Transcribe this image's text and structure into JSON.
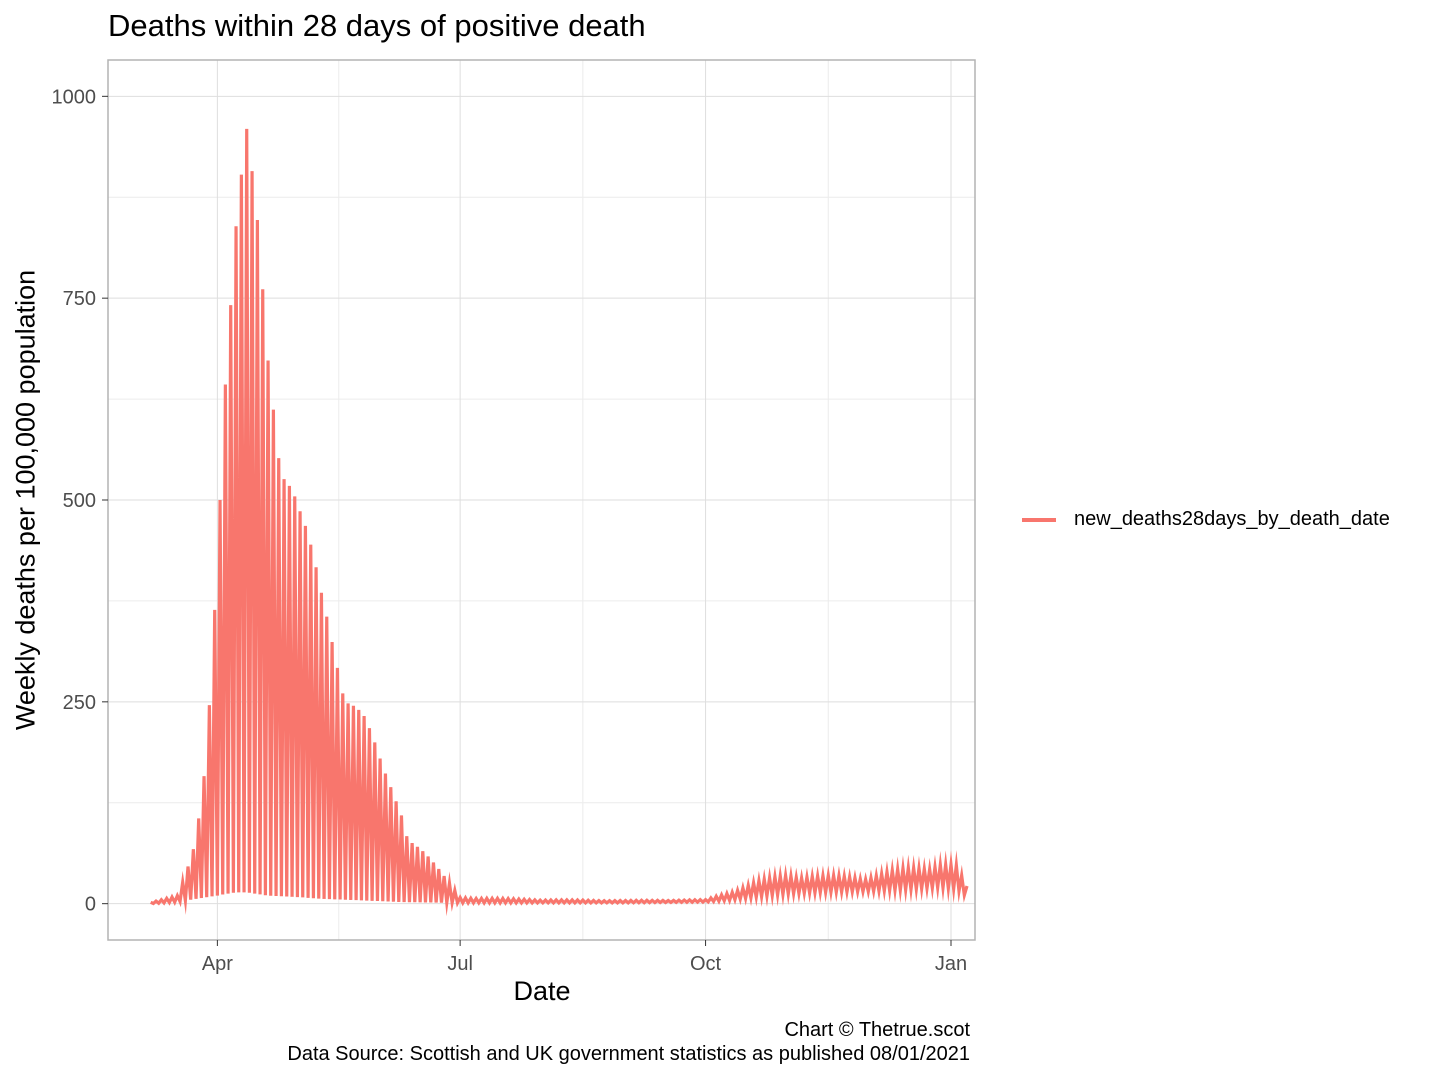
{
  "chart_data": {
    "type": "line",
    "title": "Deaths within 28 days of positive death",
    "xlabel": "Date",
    "ylabel": "Weekly deaths per 100,000 population",
    "x_range": [
      "2020-02-20",
      "2021-01-10"
    ],
    "ylim": [
      -45,
      1045
    ],
    "y_ticks": [
      0,
      250,
      500,
      750,
      1000
    ],
    "x_ticks": [
      {
        "date": "2020-04-01",
        "label": "Apr"
      },
      {
        "date": "2020-07-01",
        "label": "Jul"
      },
      {
        "date": "2020-10-01",
        "label": "Oct"
      },
      {
        "date": "2021-01-01",
        "label": "Jan"
      }
    ],
    "grid": true,
    "legend_position": "right",
    "series": [
      {
        "name": "new_deaths28days_by_death_date",
        "color": "#F8766D",
        "daily_start": "2020-03-07",
        "daily_end": "2021-01-07",
        "envelope_dates": [
          "2020-03-07",
          "2020-03-17",
          "2020-03-20",
          "2020-03-24",
          "2020-03-28",
          "2020-04-01",
          "2020-04-04",
          "2020-04-08",
          "2020-04-12",
          "2020-04-16",
          "2020-04-20",
          "2020-04-26",
          "2020-05-02",
          "2020-05-10",
          "2020-05-18",
          "2020-05-26",
          "2020-06-02",
          "2020-06-09",
          "2020-06-10",
          "2020-07-01",
          "2020-08-01",
          "2020-09-01",
          "2020-10-01",
          "2020-10-10",
          "2020-10-20",
          "2020-11-01",
          "2020-11-15",
          "2020-12-01",
          "2020-12-15",
          "2020-12-28",
          "2021-01-03",
          "2021-01-07"
        ],
        "envelope_max": [
          2,
          10,
          35,
          80,
          200,
          500,
          700,
          860,
          960,
          860,
          720,
          600,
          500,
          390,
          300,
          240,
          170,
          120,
          100,
          8,
          5,
          4,
          5,
          15,
          28,
          38,
          35,
          35,
          45,
          52,
          48,
          22
        ],
        "envelope_min": [
          0,
          2,
          4,
          6,
          8,
          10,
          12,
          14,
          14,
          12,
          10,
          9,
          8,
          6,
          5,
          4,
          3,
          2,
          2,
          1,
          1,
          1,
          2,
          4,
          8,
          12,
          14,
          15,
          17,
          20,
          18,
          8
        ]
      }
    ]
  },
  "caption": {
    "line1": "Chart © Thetrue.scot",
    "line2": "Data Source: Scottish and UK government statistics as published 08/01/2021"
  }
}
